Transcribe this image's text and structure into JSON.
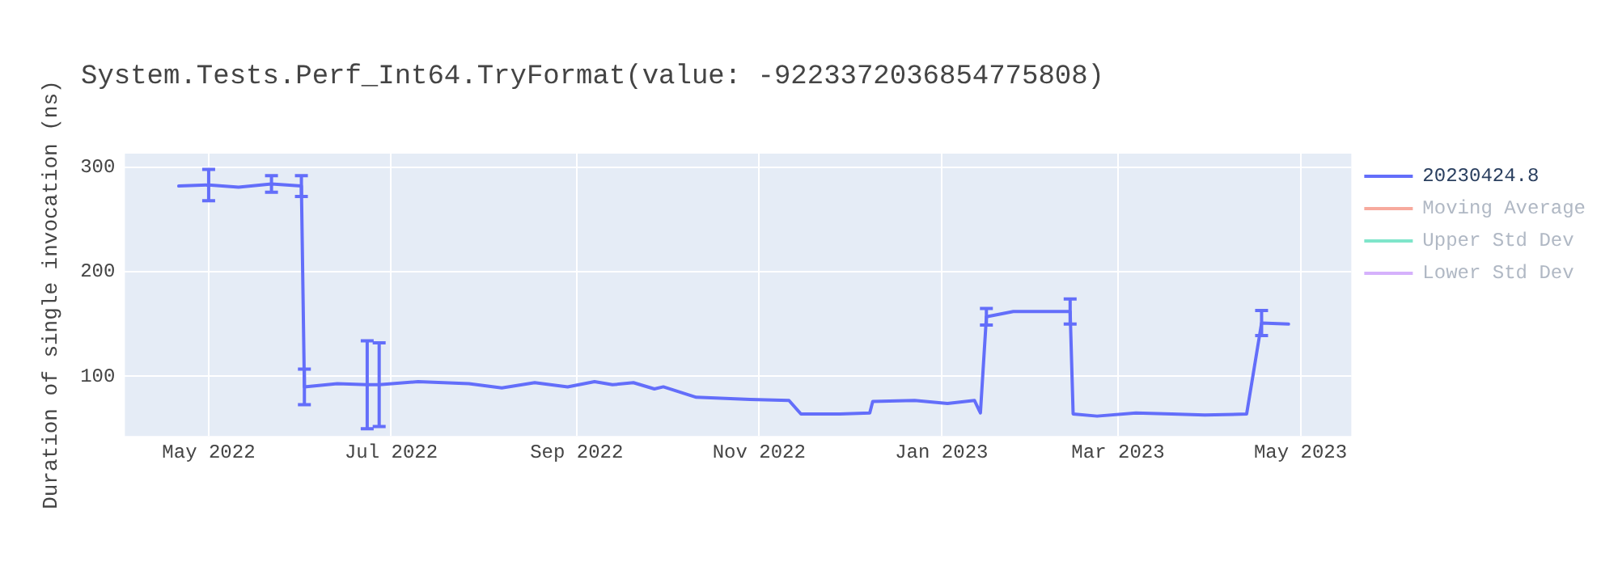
{
  "chart_data": {
    "type": "line",
    "title": "System.Tests.Perf_Int64.TryFormat(value: -9223372036854775808)",
    "ylabel": "Duration of single invocation (ns)",
    "x": [
      "2022-04-21",
      "2022-05-01",
      "2022-05-11",
      "2022-05-22",
      "2022-06-01",
      "2022-06-02",
      "2022-06-13",
      "2022-06-23",
      "2022-06-27",
      "2022-07-10",
      "2022-07-27",
      "2022-08-07",
      "2022-08-18",
      "2022-08-29",
      "2022-09-07",
      "2022-09-13",
      "2022-09-20",
      "2022-09-27",
      "2022-09-30",
      "2022-10-11",
      "2022-10-29",
      "2022-11-11",
      "2022-11-15",
      "2022-11-28",
      "2022-12-08",
      "2022-12-09",
      "2022-12-23",
      "2023-01-03",
      "2023-01-12",
      "2023-01-14",
      "2023-01-16",
      "2023-01-25",
      "2023-02-13",
      "2023-02-14",
      "2023-02-22",
      "2023-03-07",
      "2023-03-19",
      "2023-03-30",
      "2023-04-13",
      "2023-04-18",
      "2023-04-27"
    ],
    "series": [
      {
        "name": "20230424.8",
        "color": "#636efa",
        "values": [
          282,
          283,
          281,
          284,
          282,
          90,
          93,
          92,
          92,
          95,
          93,
          89,
          94,
          90,
          95,
          92,
          94,
          88,
          90,
          80,
          78,
          77,
          64,
          64,
          65,
          76,
          77,
          74,
          77,
          65,
          157,
          162,
          162,
          64,
          62,
          65,
          64,
          63,
          64,
          151,
          150
        ],
        "errors": [
          null,
          15,
          null,
          8,
          10,
          17,
          null,
          42,
          40,
          null,
          null,
          null,
          null,
          null,
          null,
          null,
          null,
          null,
          null,
          null,
          null,
          null,
          null,
          null,
          null,
          null,
          null,
          null,
          null,
          null,
          8,
          null,
          12,
          null,
          null,
          null,
          null,
          null,
          null,
          12,
          null
        ]
      },
      {
        "name": "Moving Average",
        "color": "#ef553b",
        "values": [
          null,
          null,
          null,
          null,
          null,
          null,
          null,
          null,
          null,
          null,
          null,
          null,
          null,
          null,
          null,
          null,
          null,
          null,
          null,
          null,
          null,
          null,
          null,
          null,
          null,
          null,
          null,
          null,
          null,
          null,
          null,
          null,
          null,
          null,
          null,
          null,
          null,
          null,
          null,
          null,
          null
        ]
      },
      {
        "name": "Upper Std Dev",
        "color": "#00cc96",
        "values": [
          null,
          null,
          null,
          null,
          null,
          null,
          null,
          null,
          null,
          null,
          null,
          null,
          null,
          null,
          null,
          null,
          null,
          null,
          null,
          null,
          null,
          null,
          null,
          null,
          null,
          null,
          null,
          null,
          null,
          null,
          null,
          null,
          null,
          null,
          null,
          null,
          null,
          null,
          null,
          null,
          null
        ]
      },
      {
        "name": "Lower Std Dev",
        "color": "#ab63fa",
        "values": [
          null,
          null,
          null,
          null,
          null,
          null,
          null,
          null,
          null,
          null,
          null,
          null,
          null,
          null,
          null,
          null,
          null,
          null,
          null,
          null,
          null,
          null,
          null,
          null,
          null,
          null,
          null,
          null,
          null,
          null,
          null,
          null,
          null,
          null,
          null,
          null,
          null,
          null,
          null,
          null,
          null
        ]
      }
    ],
    "xlim": [
      "2022-04-03",
      "2023-05-18"
    ],
    "xticks": [
      {
        "value": "2022-05-01",
        "label": "May 2022"
      },
      {
        "value": "2022-07-01",
        "label": "Jul 2022"
      },
      {
        "value": "2022-09-01",
        "label": "Sep 2022"
      },
      {
        "value": "2022-11-01",
        "label": "Nov 2022"
      },
      {
        "value": "2023-01-01",
        "label": "Jan 2023"
      },
      {
        "value": "2023-03-01",
        "label": "Mar 2023"
      },
      {
        "value": "2023-05-01",
        "label": "May 2023"
      }
    ],
    "ylim": [
      43,
      313
    ],
    "yticks": [
      100,
      200,
      300
    ],
    "grid": true,
    "legend": "right",
    "marker": "none",
    "line_style": "solid"
  }
}
